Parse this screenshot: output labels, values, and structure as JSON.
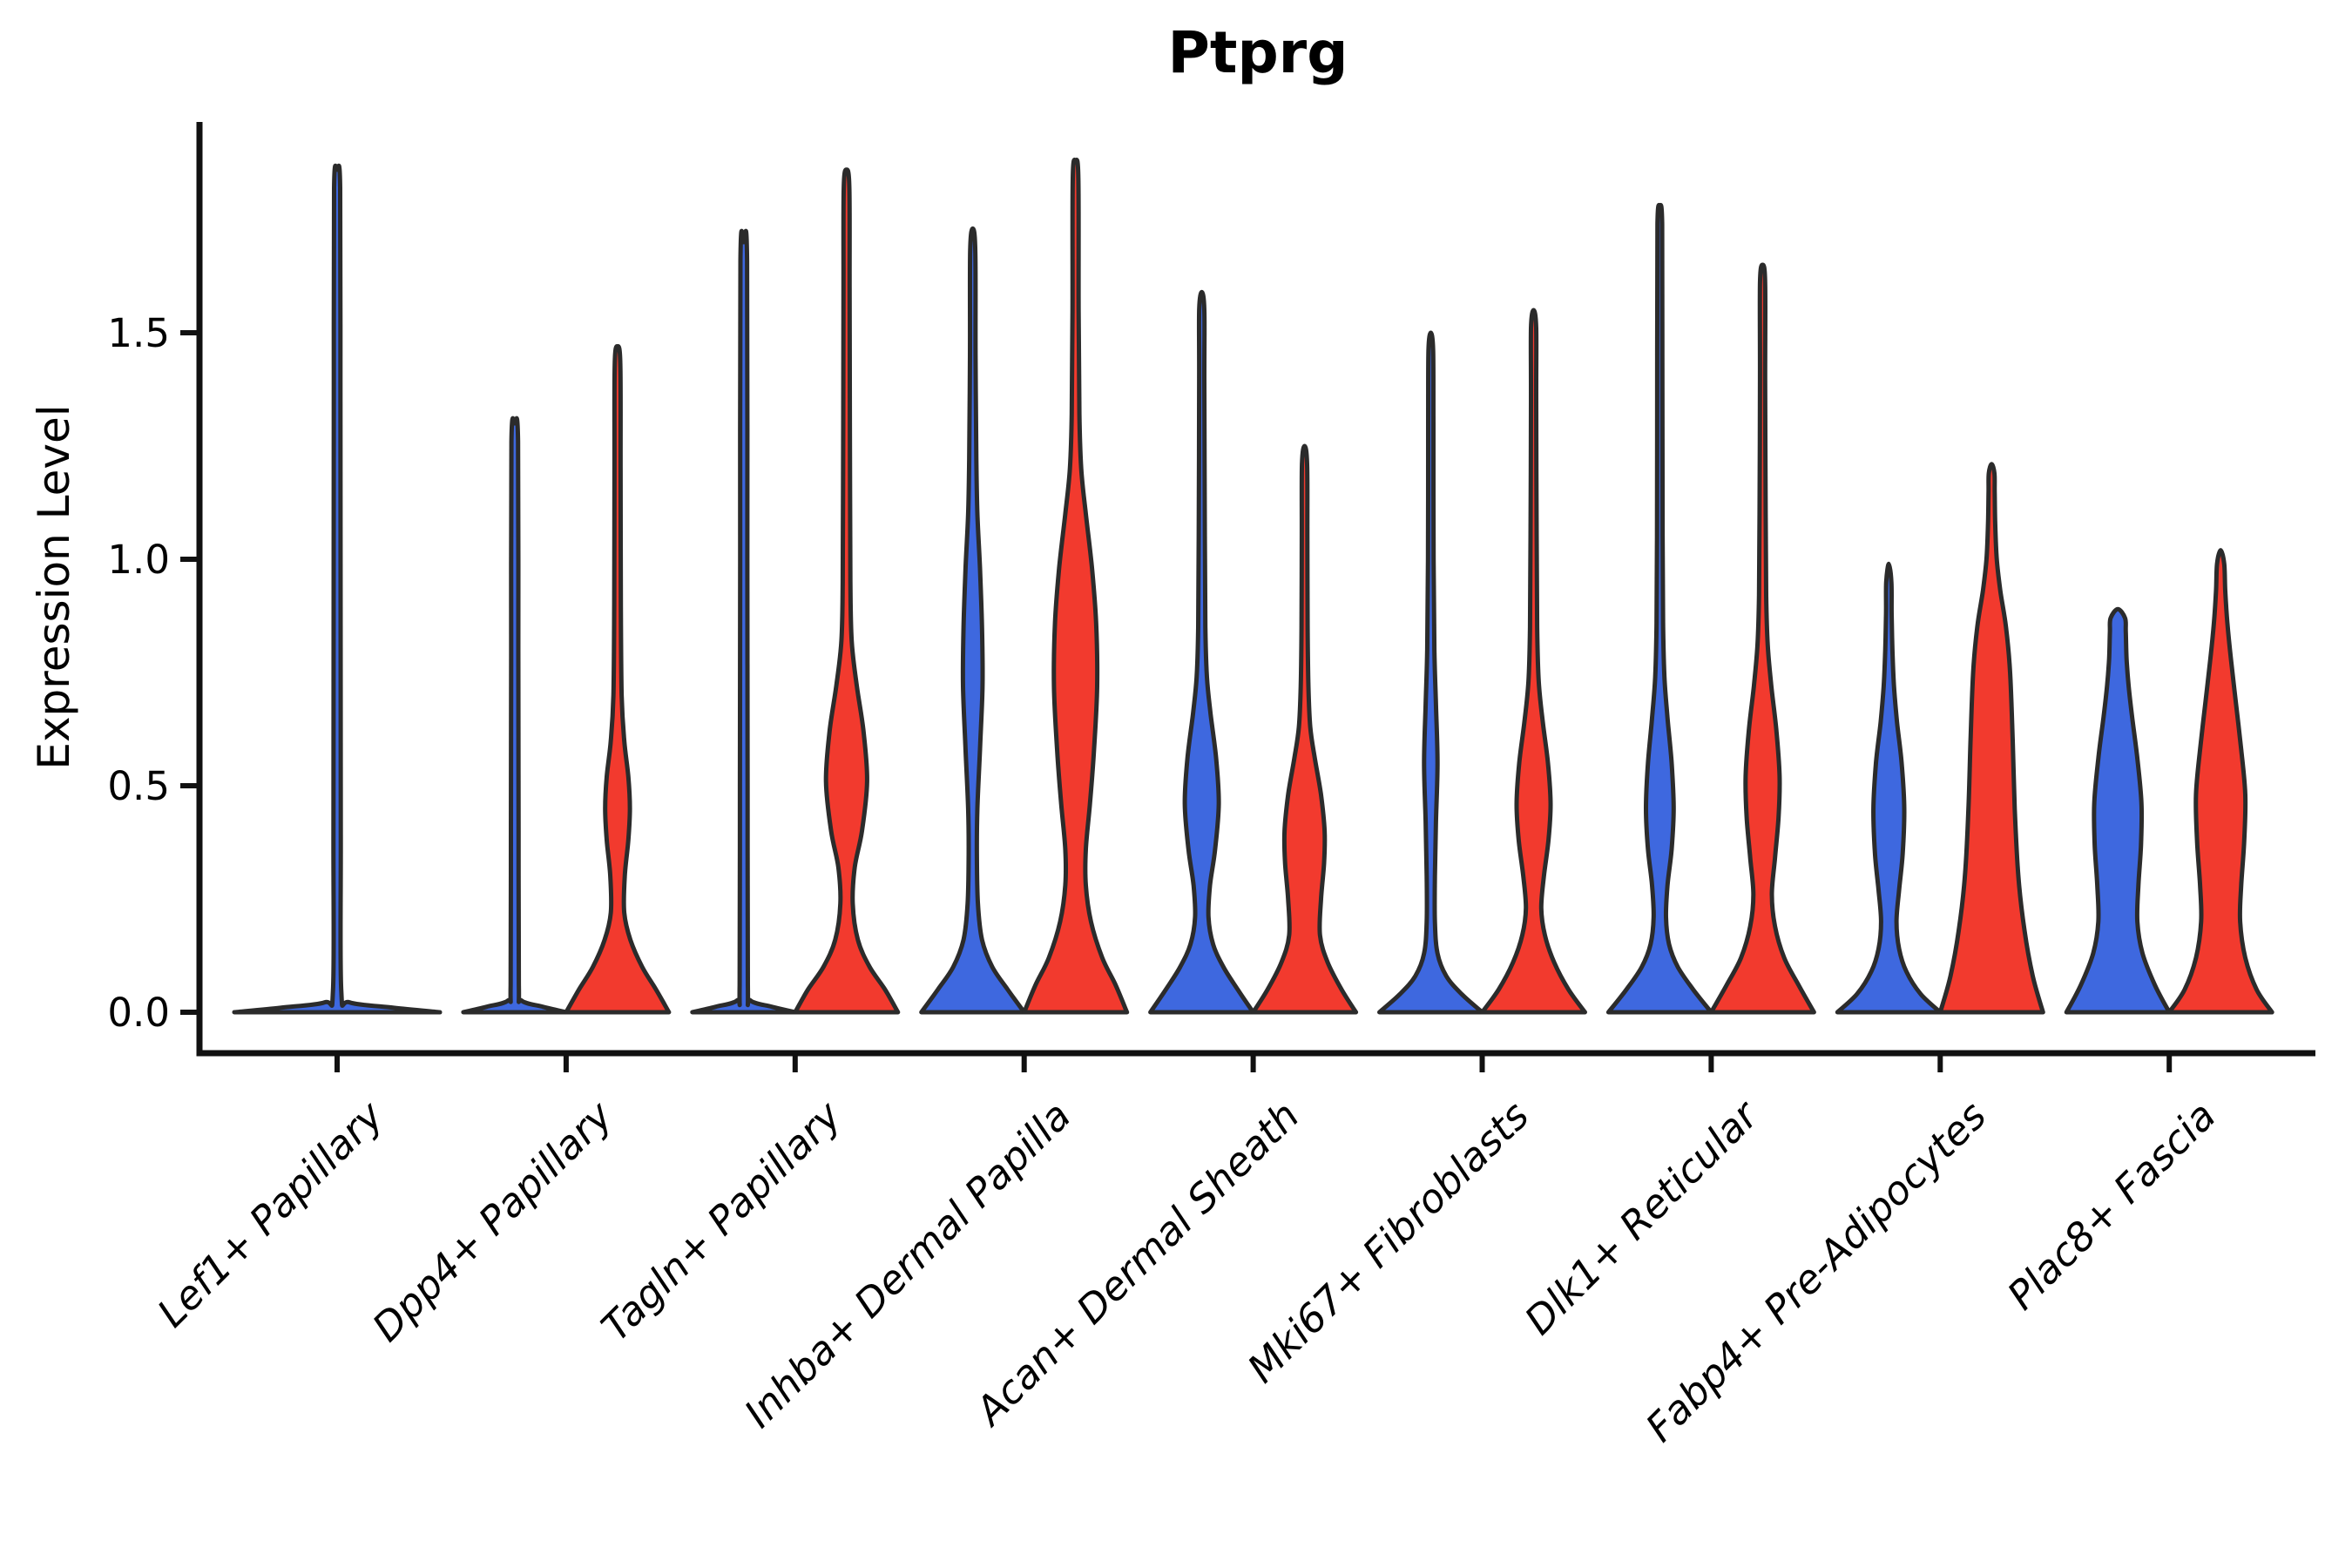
{
  "chart_data": {
    "type": "violin",
    "title": "Ptprg",
    "ylabel": "Expression Level",
    "xlabel": "",
    "y_ticks": [
      "0.0",
      "0.5",
      "1.0",
      "1.5"
    ],
    "y_tick_values": [
      0.0,
      0.5,
      1.0,
      1.5
    ],
    "ylim": [
      -0.09,
      1.97
    ],
    "grid": "off",
    "legend": "none",
    "categories": [
      "Lef1+ Papillary",
      "Dpp4+ Papillary",
      "Tagln+ Papillary",
      "Inhba+ Dermal Papilla",
      "Acan+ Dermal Sheath",
      "Mki67+ Fibroblasts",
      "Dlk1+ Reticular",
      "Fabp4+ Pre-Adipocytes",
      "Plac8+ Fascia"
    ],
    "series": [
      {
        "name": "blue",
        "color": "#3E68DF",
        "max_expression": [
          1.86,
          1.3,
          1.7,
          1.73,
          1.59,
          1.5,
          1.78,
          0.99,
          0.89
        ]
      },
      {
        "name": "red",
        "color": "#F23A2E",
        "max_expression": [
          null,
          1.47,
          1.86,
          1.88,
          1.25,
          1.55,
          1.65,
          1.21,
          1.02
        ]
      }
    ],
    "violins": [
      {
        "category": 0,
        "side": "blue",
        "full_width": true,
        "tip": 1.86,
        "profile": [
          [
            0,
            1
          ],
          [
            0.01,
            0.55
          ],
          [
            0.022,
            0.12
          ],
          [
            0.05,
            0.04
          ],
          [
            0.4,
            0.036
          ],
          [
            0.9,
            0.034
          ],
          [
            1.4,
            0.032
          ],
          [
            1.82,
            0.03
          ],
          [
            1.86,
            0
          ]
        ]
      },
      {
        "category": 1,
        "side": "blue",
        "tip": 1.3,
        "profile": [
          [
            0,
            1
          ],
          [
            0.012,
            0.55
          ],
          [
            0.026,
            0.13
          ],
          [
            0.06,
            0.08
          ],
          [
            0.4,
            0.075
          ],
          [
            0.8,
            0.07
          ],
          [
            1.26,
            0.065
          ],
          [
            1.3,
            0
          ]
        ]
      },
      {
        "category": 1,
        "side": "red",
        "tip": 1.47,
        "profile": [
          [
            0,
            1
          ],
          [
            0.05,
            0.75
          ],
          [
            0.1,
            0.48
          ],
          [
            0.16,
            0.25
          ],
          [
            0.22,
            0.13
          ],
          [
            0.3,
            0.14
          ],
          [
            0.38,
            0.21
          ],
          [
            0.45,
            0.24
          ],
          [
            0.52,
            0.21
          ],
          [
            0.6,
            0.13
          ],
          [
            0.7,
            0.08
          ],
          [
            0.9,
            0.065
          ],
          [
            1.2,
            0.06
          ],
          [
            1.43,
            0.055
          ],
          [
            1.47,
            0
          ]
        ]
      },
      {
        "category": 2,
        "side": "blue",
        "tip": 1.7,
        "profile": [
          [
            0,
            1
          ],
          [
            0.012,
            0.55
          ],
          [
            0.026,
            0.13
          ],
          [
            0.06,
            0.08
          ],
          [
            0.5,
            0.075
          ],
          [
            1.0,
            0.07
          ],
          [
            1.66,
            0.065
          ],
          [
            1.7,
            0
          ]
        ]
      },
      {
        "category": 2,
        "side": "red",
        "tip": 1.86,
        "profile": [
          [
            0,
            1
          ],
          [
            0.05,
            0.75
          ],
          [
            0.1,
            0.45
          ],
          [
            0.16,
            0.22
          ],
          [
            0.24,
            0.12
          ],
          [
            0.32,
            0.16
          ],
          [
            0.4,
            0.3
          ],
          [
            0.51,
            0.4
          ],
          [
            0.62,
            0.33
          ],
          [
            0.72,
            0.2
          ],
          [
            0.82,
            0.1
          ],
          [
            0.95,
            0.075
          ],
          [
            1.3,
            0.065
          ],
          [
            1.6,
            0.06
          ],
          [
            1.82,
            0.055
          ],
          [
            1.86,
            0
          ]
        ]
      },
      {
        "category": 3,
        "side": "blue",
        "tip": 1.73,
        "profile": [
          [
            0,
            1
          ],
          [
            0.05,
            0.68
          ],
          [
            0.1,
            0.38
          ],
          [
            0.16,
            0.18
          ],
          [
            0.24,
            0.1
          ],
          [
            0.35,
            0.08
          ],
          [
            0.45,
            0.09
          ],
          [
            0.58,
            0.14
          ],
          [
            0.72,
            0.19
          ],
          [
            0.85,
            0.18
          ],
          [
            0.98,
            0.14
          ],
          [
            1.1,
            0.09
          ],
          [
            1.22,
            0.07
          ],
          [
            1.45,
            0.055
          ],
          [
            1.68,
            0.05
          ],
          [
            1.73,
            0
          ]
        ]
      },
      {
        "category": 3,
        "side": "red",
        "tip": 1.88,
        "profile": [
          [
            0,
            1
          ],
          [
            0.06,
            0.78
          ],
          [
            0.12,
            0.52
          ],
          [
            0.2,
            0.3
          ],
          [
            0.28,
            0.2
          ],
          [
            0.36,
            0.2
          ],
          [
            0.46,
            0.28
          ],
          [
            0.58,
            0.36
          ],
          [
            0.72,
            0.42
          ],
          [
            0.86,
            0.4
          ],
          [
            0.98,
            0.32
          ],
          [
            1.1,
            0.2
          ],
          [
            1.2,
            0.11
          ],
          [
            1.32,
            0.075
          ],
          [
            1.55,
            0.06
          ],
          [
            1.84,
            0.055
          ],
          [
            1.88,
            0
          ]
        ]
      },
      {
        "category": 4,
        "side": "blue",
        "tip": 1.59,
        "profile": [
          [
            0,
            1
          ],
          [
            0.05,
            0.7
          ],
          [
            0.1,
            0.42
          ],
          [
            0.15,
            0.22
          ],
          [
            0.21,
            0.13
          ],
          [
            0.28,
            0.16
          ],
          [
            0.36,
            0.26
          ],
          [
            0.46,
            0.33
          ],
          [
            0.56,
            0.28
          ],
          [
            0.66,
            0.17
          ],
          [
            0.74,
            0.1
          ],
          [
            0.85,
            0.07
          ],
          [
            1.05,
            0.06
          ],
          [
            1.4,
            0.05
          ],
          [
            1.55,
            0.05
          ],
          [
            1.59,
            0
          ]
        ]
      },
      {
        "category": 4,
        "side": "red",
        "tip": 1.25,
        "profile": [
          [
            0,
            1
          ],
          [
            0.05,
            0.72
          ],
          [
            0.11,
            0.45
          ],
          [
            0.17,
            0.3
          ],
          [
            0.25,
            0.32
          ],
          [
            0.33,
            0.38
          ],
          [
            0.4,
            0.39
          ],
          [
            0.48,
            0.32
          ],
          [
            0.56,
            0.2
          ],
          [
            0.63,
            0.11
          ],
          [
            0.72,
            0.075
          ],
          [
            0.85,
            0.06
          ],
          [
            1.05,
            0.055
          ],
          [
            1.21,
            0.05
          ],
          [
            1.25,
            0
          ]
        ]
      },
      {
        "category": 5,
        "side": "blue",
        "tip": 1.5,
        "profile": [
          [
            0,
            1
          ],
          [
            0.04,
            0.6
          ],
          [
            0.08,
            0.3
          ],
          [
            0.13,
            0.13
          ],
          [
            0.2,
            0.08
          ],
          [
            0.3,
            0.08
          ],
          [
            0.42,
            0.1
          ],
          [
            0.55,
            0.13
          ],
          [
            0.68,
            0.1
          ],
          [
            0.8,
            0.07
          ],
          [
            1.0,
            0.055
          ],
          [
            1.3,
            0.05
          ],
          [
            1.46,
            0.045
          ],
          [
            1.5,
            0
          ]
        ]
      },
      {
        "category": 5,
        "side": "red",
        "tip": 1.55,
        "profile": [
          [
            0,
            1
          ],
          [
            0.05,
            0.68
          ],
          [
            0.11,
            0.4
          ],
          [
            0.17,
            0.22
          ],
          [
            0.23,
            0.15
          ],
          [
            0.3,
            0.2
          ],
          [
            0.38,
            0.29
          ],
          [
            0.46,
            0.33
          ],
          [
            0.55,
            0.28
          ],
          [
            0.64,
            0.18
          ],
          [
            0.73,
            0.1
          ],
          [
            0.85,
            0.07
          ],
          [
            1.05,
            0.06
          ],
          [
            1.35,
            0.05
          ],
          [
            1.51,
            0.05
          ],
          [
            1.55,
            0
          ]
        ]
      },
      {
        "category": 6,
        "side": "blue",
        "tip": 1.78,
        "profile": [
          [
            0,
            1
          ],
          [
            0.05,
            0.65
          ],
          [
            0.1,
            0.35
          ],
          [
            0.15,
            0.18
          ],
          [
            0.21,
            0.12
          ],
          [
            0.28,
            0.15
          ],
          [
            0.36,
            0.23
          ],
          [
            0.45,
            0.27
          ],
          [
            0.55,
            0.23
          ],
          [
            0.65,
            0.15
          ],
          [
            0.74,
            0.09
          ],
          [
            0.85,
            0.065
          ],
          [
            1.05,
            0.055
          ],
          [
            1.45,
            0.05
          ],
          [
            1.74,
            0.045
          ],
          [
            1.78,
            0
          ]
        ]
      },
      {
        "category": 6,
        "side": "red",
        "tip": 1.65,
        "profile": [
          [
            0,
            1
          ],
          [
            0.06,
            0.7
          ],
          [
            0.12,
            0.42
          ],
          [
            0.19,
            0.24
          ],
          [
            0.26,
            0.18
          ],
          [
            0.34,
            0.24
          ],
          [
            0.43,
            0.31
          ],
          [
            0.52,
            0.33
          ],
          [
            0.62,
            0.27
          ],
          [
            0.72,
            0.17
          ],
          [
            0.81,
            0.1
          ],
          [
            0.92,
            0.07
          ],
          [
            1.1,
            0.06
          ],
          [
            1.4,
            0.05
          ],
          [
            1.61,
            0.05
          ],
          [
            1.65,
            0
          ]
        ]
      },
      {
        "category": 7,
        "side": "blue",
        "tip": 0.99,
        "profile": [
          [
            0,
            1
          ],
          [
            0.04,
            0.62
          ],
          [
            0.09,
            0.34
          ],
          [
            0.14,
            0.2
          ],
          [
            0.2,
            0.15
          ],
          [
            0.27,
            0.2
          ],
          [
            0.35,
            0.27
          ],
          [
            0.45,
            0.3
          ],
          [
            0.55,
            0.25
          ],
          [
            0.64,
            0.16
          ],
          [
            0.72,
            0.1
          ],
          [
            0.8,
            0.07
          ],
          [
            0.88,
            0.055
          ],
          [
            0.95,
            0.05
          ],
          [
            0.99,
            0
          ]
        ]
      },
      {
        "category": 7,
        "side": "red",
        "tip": 1.21,
        "profile": [
          [
            0,
            1
          ],
          [
            0.08,
            0.8
          ],
          [
            0.18,
            0.64
          ],
          [
            0.3,
            0.52
          ],
          [
            0.45,
            0.45
          ],
          [
            0.6,
            0.41
          ],
          [
            0.75,
            0.36
          ],
          [
            0.85,
            0.28
          ],
          [
            0.93,
            0.17
          ],
          [
            1.0,
            0.1
          ],
          [
            1.08,
            0.07
          ],
          [
            1.15,
            0.06
          ],
          [
            1.19,
            0.055
          ],
          [
            1.21,
            0
          ]
        ]
      },
      {
        "category": 8,
        "side": "blue",
        "tip": 0.89,
        "profile": [
          [
            0,
            1
          ],
          [
            0.06,
            0.72
          ],
          [
            0.13,
            0.48
          ],
          [
            0.2,
            0.38
          ],
          [
            0.28,
            0.4
          ],
          [
            0.37,
            0.45
          ],
          [
            0.46,
            0.46
          ],
          [
            0.56,
            0.38
          ],
          [
            0.65,
            0.28
          ],
          [
            0.72,
            0.21
          ],
          [
            0.78,
            0.17
          ],
          [
            0.84,
            0.155
          ],
          [
            0.87,
            0.14
          ],
          [
            0.89,
            0
          ]
        ]
      },
      {
        "category": 8,
        "side": "red",
        "tip": 1.02,
        "profile": [
          [
            0,
            1
          ],
          [
            0.05,
            0.7
          ],
          [
            0.12,
            0.48
          ],
          [
            0.2,
            0.38
          ],
          [
            0.28,
            0.4
          ],
          [
            0.38,
            0.46
          ],
          [
            0.48,
            0.48
          ],
          [
            0.58,
            0.4
          ],
          [
            0.68,
            0.3
          ],
          [
            0.78,
            0.2
          ],
          [
            0.86,
            0.13
          ],
          [
            0.93,
            0.09
          ],
          [
            0.99,
            0.07
          ],
          [
            1.02,
            0
          ]
        ]
      }
    ]
  },
  "colors": {
    "blue_fill": "#3E68DF",
    "red_fill": "#F23A2E",
    "violin_stroke": "#2B2B2B",
    "axis": "#111111",
    "text": "#000000",
    "background": "#FFFFFF"
  }
}
